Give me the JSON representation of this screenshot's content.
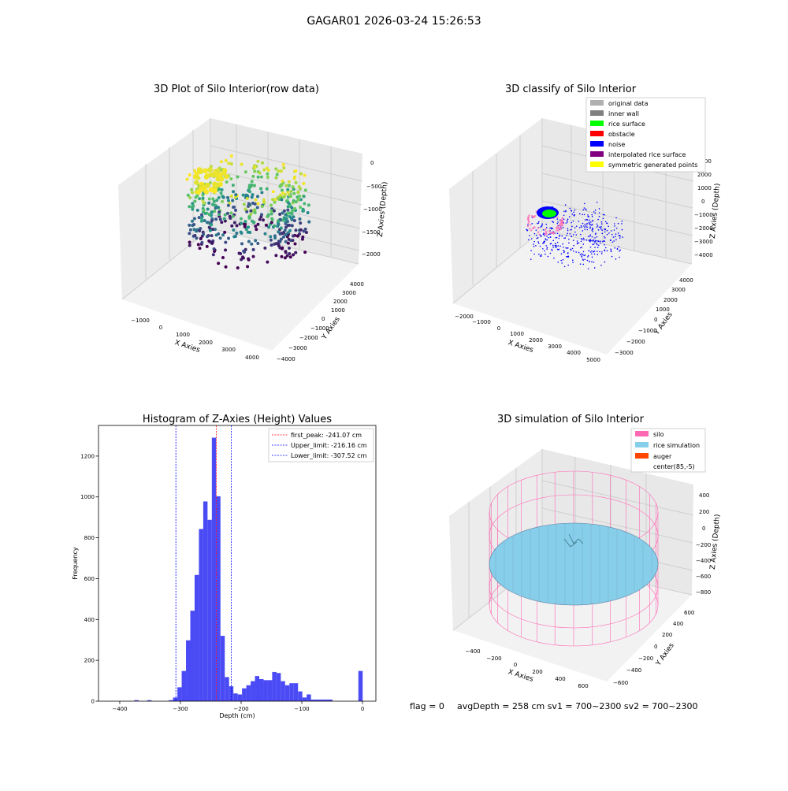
{
  "suptitle": "GAGAR01 2026-03-24 15:26:53",
  "colors": {
    "original": "#b0b0b0",
    "inner_wall": "#808080",
    "rice_surface": "#00ff00",
    "obstacle": "#ff0000",
    "noise": "#0000ff",
    "interpolated": "#800080",
    "symmetric": "#ffff00",
    "hist_bar": "#4b4bf5",
    "silo": "#ff69b4",
    "rice_sim": "#87ceeb",
    "auger": "#ff4500"
  },
  "chart_data": [
    {
      "type": "scatter",
      "title": "3D Plot of Silo Interior(row data)",
      "xlabel": "X Axies",
      "ylabel": "Y Axies",
      "zlabel": "Z Axies (Depth)",
      "x_ticks": [
        "−1000",
        "0",
        "1000",
        "2000",
        "3000",
        "4000"
      ],
      "y_ticks": [
        "−4000",
        "−3000",
        "−2000",
        "−1000",
        "0",
        "1000",
        "2000",
        "3000",
        "4000"
      ],
      "z_ticks": [
        "0",
        "−500",
        "−1000",
        "−1500",
        "−2000"
      ],
      "colormap": "viridis (by depth)"
    },
    {
      "type": "scatter",
      "title": "3D classify of Silo Interior",
      "xlabel": "X Axies",
      "ylabel": "Y Axies",
      "zlabel": "Z Axies (Depth)",
      "x_ticks": [
        "−2000",
        "−1000",
        "0",
        "1000",
        "2000",
        "3000",
        "4000",
        "5000"
      ],
      "y_ticks": [
        "−3000",
        "−2000",
        "−1000",
        "0",
        "1000",
        "2000",
        "3000",
        "4000"
      ],
      "z_ticks": [
        "3000",
        "2000",
        "1000",
        "0",
        "−1000",
        "−2000",
        "−3000",
        "−4000"
      ],
      "legend": [
        "original data",
        "inner wall",
        "rice surface",
        "obstacle",
        "noise",
        "interpolated rice surface",
        "symmetric generated points"
      ],
      "legend_placement": "upper right"
    },
    {
      "type": "bar",
      "title": "Histogram of Z-Axies (Height) Values",
      "xlabel": "Depth (cm)",
      "ylabel": "Frequency",
      "xlim": [
        -435,
        22
      ],
      "ylim": [
        0,
        1350
      ],
      "x_ticks": [
        -400,
        -300,
        -200,
        -100,
        0
      ],
      "y_ticks": [
        0,
        200,
        400,
        600,
        800,
        1000,
        1200
      ],
      "bin_width": 7.1,
      "bins": [
        [
          -372.5,
          5
        ],
        [
          -351.2,
          5
        ],
        [
          -315.7,
          5
        ],
        [
          -308.6,
          18
        ],
        [
          -301.5,
          68
        ],
        [
          -294.4,
          148
        ],
        [
          -287.3,
          298
        ],
        [
          -280.2,
          443
        ],
        [
          -273.1,
          618
        ],
        [
          -266.0,
          843
        ],
        [
          -258.9,
          978
        ],
        [
          -251.8,
          888
        ],
        [
          -244.7,
          1290
        ],
        [
          -237.6,
          1003
        ],
        [
          -230.5,
          320
        ],
        [
          -223.4,
          118
        ],
        [
          -216.3,
          73
        ],
        [
          -209.2,
          38
        ],
        [
          -202.1,
          33
        ],
        [
          -195.0,
          63
        ],
        [
          -187.9,
          78
        ],
        [
          -180.8,
          98
        ],
        [
          -173.7,
          123
        ],
        [
          -166.6,
          108
        ],
        [
          -159.5,
          103
        ],
        [
          -152.4,
          103
        ],
        [
          -145.3,
          143
        ],
        [
          -138.2,
          138
        ],
        [
          -131.1,
          98
        ],
        [
          -124.0,
          78
        ],
        [
          -116.9,
          88
        ],
        [
          -109.8,
          88
        ],
        [
          -102.7,
          48
        ],
        [
          -95.6,
          18
        ],
        [
          -88.5,
          33
        ],
        [
          -81.4,
          8
        ],
        [
          -74.3,
          8
        ],
        [
          -67.2,
          8
        ],
        [
          -60.1,
          8
        ],
        [
          -53.0,
          8
        ],
        [
          -3.3,
          148
        ]
      ],
      "vlines": [
        {
          "value": -241.07,
          "color": "#ff0000",
          "label": "first_peak: -241.07 cm"
        },
        {
          "value": -216.16,
          "color": "#0000ff",
          "label": "Upper_limit: -216.16 cm"
        },
        {
          "value": -307.52,
          "color": "#0000ff",
          "label": "Lower_limit: -307.52 cm"
        }
      ],
      "legend_placement": "upper right"
    },
    {
      "type": "surface",
      "title": "3D simulation of Silo Interior",
      "xlabel": "X Axies",
      "ylabel": "Y Axies",
      "zlabel": "Z Axies (Depth)",
      "x_ticks": [
        "−400",
        "−200",
        "0",
        "200",
        "400",
        "600"
      ],
      "y_ticks": [
        "−600",
        "−400",
        "−200",
        "0",
        "200",
        "400",
        "600"
      ],
      "z_ticks": [
        "400",
        "200",
        "0",
        "−200",
        "−400",
        "−600",
        "−800"
      ],
      "legend": [
        "silo",
        "rice simulation",
        "auger",
        "center(85,-5)"
      ],
      "legend_placement": "upper right"
    }
  ],
  "status_line": {
    "flag": "flag = 0",
    "avg": "avgDepth = 258 cm  sv1 = 700~2300  sv2 = 700~2300"
  }
}
